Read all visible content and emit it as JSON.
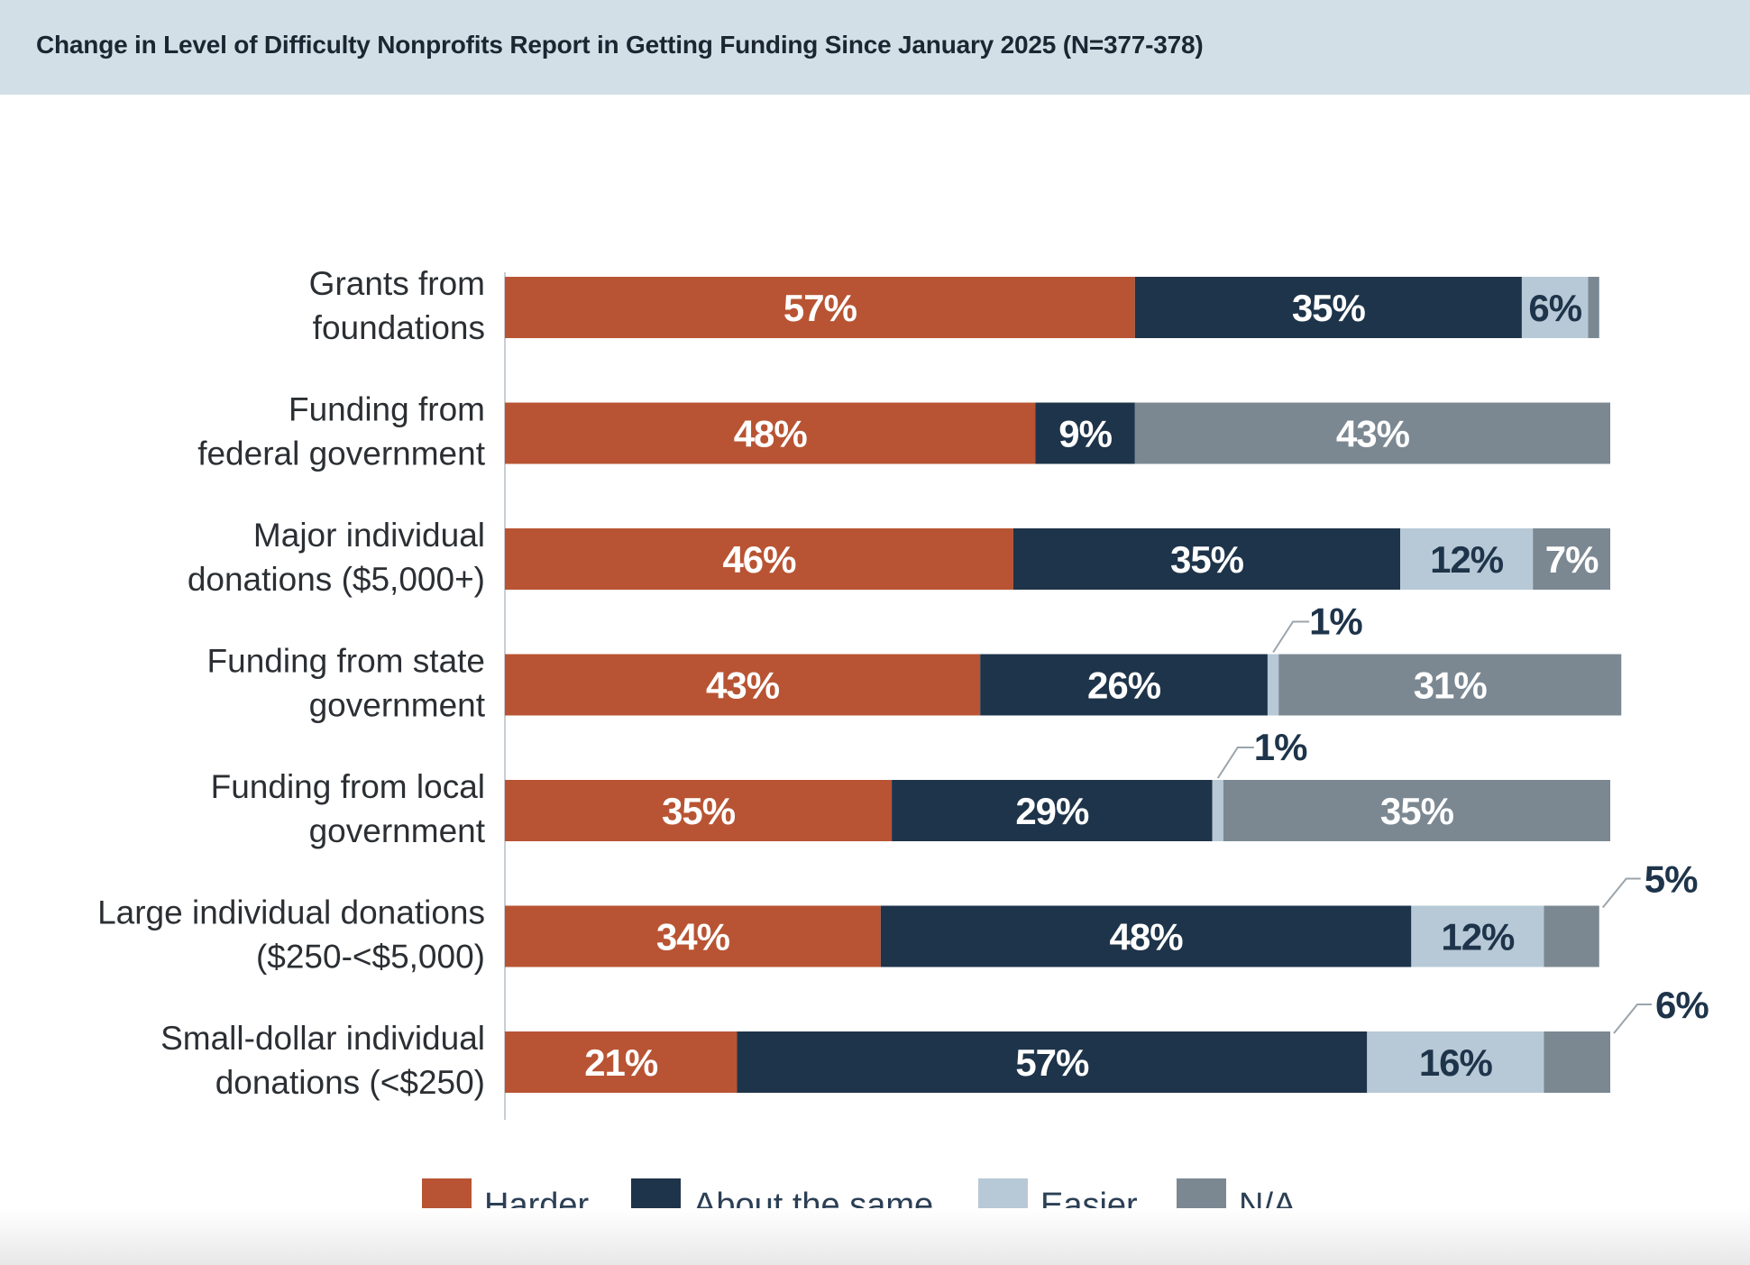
{
  "header": {
    "title": "Change in Level of Difficulty Nonprofits Report in Getting Funding Since January 2025 (N=377-378)"
  },
  "colors": {
    "harder": "#b85433",
    "same": "#1e344a",
    "easier": "#b7c9d6",
    "na": "#7b8892",
    "header_bg": "#d3dfe6"
  },
  "chart_data": {
    "type": "bar",
    "orientation": "horizontal",
    "stacked": true,
    "title": "Change in Level of Difficulty Nonprofits Report in Getting Funding Since January 2025 (N=377-378)",
    "categories": [
      [
        "Grants from",
        "foundations"
      ],
      [
        "Funding from",
        "federal government"
      ],
      [
        "Major individual",
        "donations ($5,000+)"
      ],
      [
        "Funding from state",
        "government"
      ],
      [
        "Funding from local",
        "government"
      ],
      [
        "Large individual donations",
        "($250-<$5,000)"
      ],
      [
        "Small-dollar individual",
        "donations (<$250)"
      ]
    ],
    "series": [
      {
        "name": "Harder",
        "key": "harder",
        "values": [
          57,
          48,
          46,
          43,
          35,
          34,
          21
        ]
      },
      {
        "name": "About the same",
        "key": "same",
        "values": [
          35,
          9,
          35,
          26,
          29,
          48,
          57
        ]
      },
      {
        "name": "Easier",
        "key": "easier",
        "values": [
          6,
          0,
          12,
          1,
          1,
          12,
          16
        ]
      },
      {
        "name": "N/A",
        "key": "na",
        "values": [
          1,
          43,
          7,
          31,
          35,
          5,
          6
        ]
      }
    ],
    "label_text": [
      [
        "57%",
        "35%",
        "6%",
        ""
      ],
      [
        "48%",
        "9%",
        "",
        "43%"
      ],
      [
        "46%",
        "35%",
        "12%",
        "7%"
      ],
      [
        "43%",
        "26%",
        "1%",
        "31%"
      ],
      [
        "35%",
        "29%",
        "1%",
        "35%"
      ],
      [
        "34%",
        "48%",
        "12%",
        "5%"
      ],
      [
        "21%",
        "57%",
        "16%",
        "6%"
      ]
    ],
    "label_placement": [
      [
        "inside",
        "inside",
        "inside",
        "none"
      ],
      [
        "inside",
        "inside",
        "none",
        "inside"
      ],
      [
        "inside",
        "inside",
        "inside",
        "inside"
      ],
      [
        "inside",
        "inside",
        "callout-above",
        "inside"
      ],
      [
        "inside",
        "inside",
        "callout-above",
        "inside"
      ],
      [
        "inside",
        "inside",
        "inside",
        "callout-right"
      ],
      [
        "inside",
        "inside",
        "inside",
        "callout-right"
      ]
    ],
    "xlim": [
      0,
      100
    ],
    "legend": {
      "position": "bottom",
      "items": [
        "Harder",
        "About the same",
        "Easier",
        "N/A"
      ]
    },
    "grid": false
  }
}
